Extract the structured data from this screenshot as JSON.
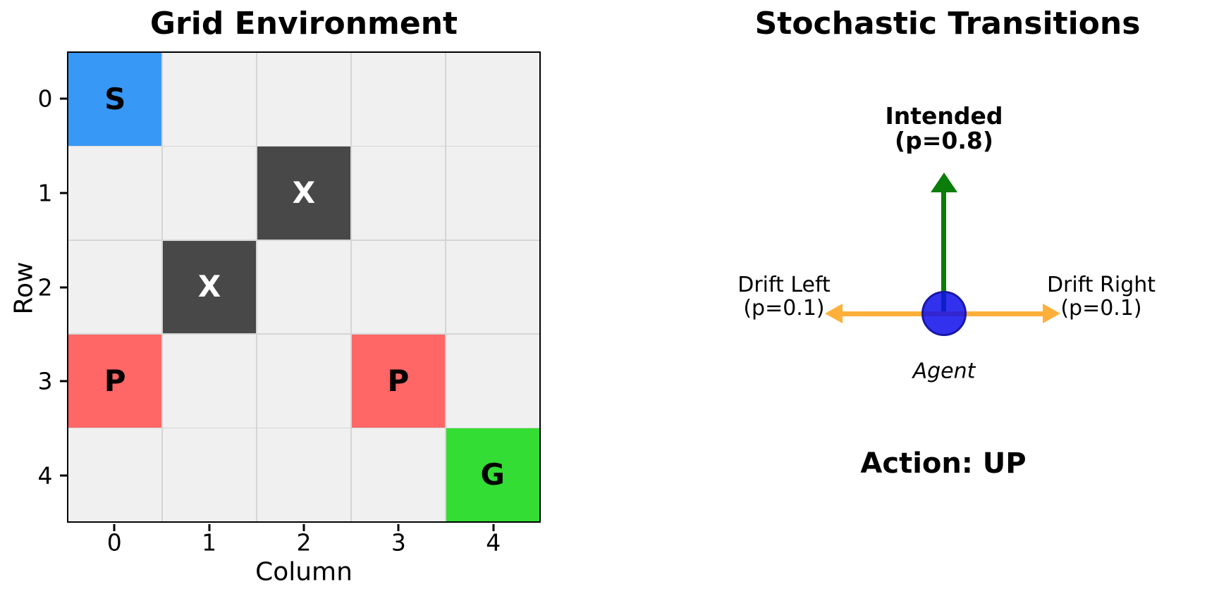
{
  "left_panel": {
    "title": "Grid Environment",
    "xlabel": "Column",
    "ylabel": "Row",
    "col_ticks": [
      "0",
      "1",
      "2",
      "3",
      "4"
    ],
    "row_ticks": [
      "0",
      "1",
      "2",
      "3",
      "4"
    ],
    "cells": [
      [
        "S",
        "",
        "",
        "",
        ""
      ],
      [
        "",
        "",
        "X",
        "",
        ""
      ],
      [
        "",
        "X",
        "",
        "",
        ""
      ],
      [
        "P",
        "",
        "",
        "P",
        ""
      ],
      [
        "",
        "",
        "",
        "",
        "G"
      ]
    ],
    "cell_colors": {
      "S": {
        "bg": "#3898f5",
        "fg": "#000000"
      },
      "X": {
        "bg": "#484848",
        "fg": "#ffffff"
      },
      "P": {
        "bg": "#ff6666",
        "fg": "#000000"
      },
      "G": {
        "bg": "#33dd33",
        "fg": "#000000"
      },
      "empty": {
        "bg": "#f0f0f0",
        "fg": "#000000"
      }
    },
    "gridline_color": "#d5d5d5"
  },
  "right_panel": {
    "title": "Stochastic Transitions",
    "intended_label": "Intended\n(p=0.8)",
    "drift_left_label": "Drift Left\n(p=0.1)",
    "drift_right_label": "Drift Right\n(p=0.1)",
    "agent_label": "Agent",
    "action_label": "Action: UP",
    "colors": {
      "intended_arrow": "#0a7d0a",
      "drift_arrow": "#ffb03a",
      "agent_fill": "#2828eb",
      "agent_border": "#1818a8"
    }
  },
  "chart_data": {
    "type": "heatmap",
    "title": "Grid Environment",
    "xlabel": "Column",
    "ylabel": "Row",
    "x": [
      0,
      1,
      2,
      3,
      4
    ],
    "y": [
      0,
      1,
      2,
      3,
      4
    ],
    "cells": [
      [
        "S",
        "",
        "",
        "",
        ""
      ],
      [
        "",
        "",
        "X",
        "",
        ""
      ],
      [
        "",
        "X",
        "",
        "",
        ""
      ],
      [
        "P",
        "",
        "",
        "P",
        ""
      ],
      [
        "",
        "",
        "",
        "",
        "G"
      ]
    ],
    "cell_meanings_visible_as_letters_only": [
      "S",
      "X",
      "P",
      "G"
    ],
    "grid": true,
    "annotations": [
      "Stochastic Transitions",
      "Intended (p=0.8)",
      "Drift Left (p=0.1)",
      "Drift Right (p=0.1)",
      "Agent",
      "Action: UP"
    ]
  }
}
